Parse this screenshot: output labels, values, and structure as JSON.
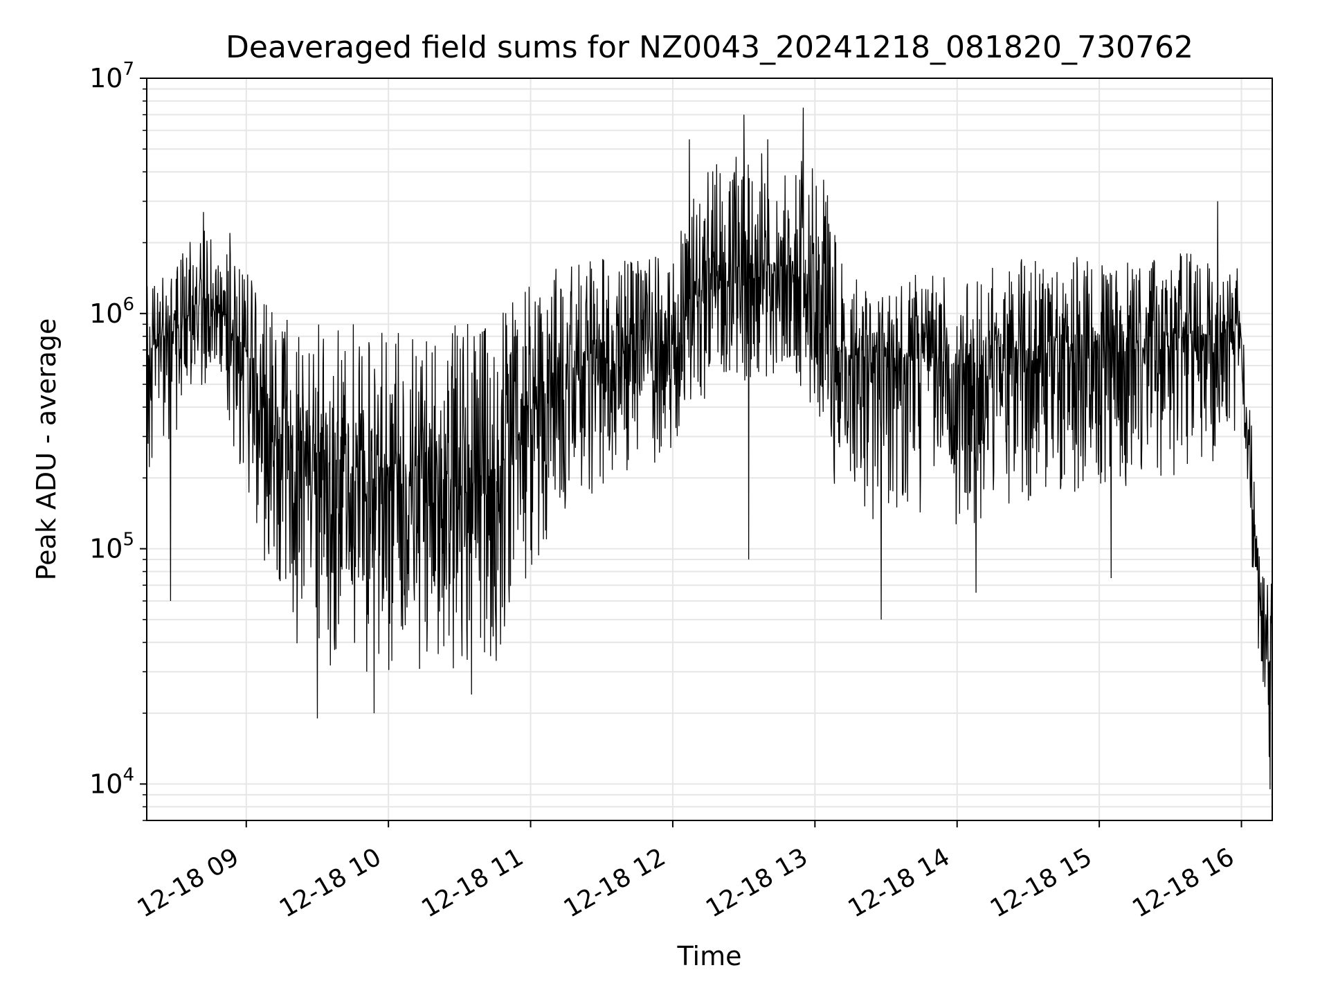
{
  "chart_data": {
    "type": "line",
    "title": "Deaveraged field sums for NZ0043_20241218_081820_730762",
    "xlabel": "Time",
    "ylabel": "Peak ADU - average",
    "yscale": "log",
    "ylim": [
      7000,
      10000000
    ],
    "xlim": [
      "2024-12-18 08:18",
      "2024-12-18 16:13"
    ],
    "x_ticks": [
      "12-18 09",
      "12-18 10",
      "12-18 11",
      "12-18 12",
      "12-18 13",
      "12-18 14",
      "12-18 15",
      "12-18 16"
    ],
    "x_tick_times": [
      "2024-12-18 09:00",
      "2024-12-18 10:00",
      "2024-12-18 11:00",
      "2024-12-18 12:00",
      "2024-12-18 13:00",
      "2024-12-18 14:00",
      "2024-12-18 15:00",
      "2024-12-18 16:00"
    ],
    "y_ticks": [
      {
        "base": "10",
        "exp": "4",
        "value": 10000
      },
      {
        "base": "10",
        "exp": "5",
        "value": 100000
      },
      {
        "base": "10",
        "exp": "6",
        "value": 1000000
      },
      {
        "base": "10",
        "exp": "7",
        "value": 10000000
      }
    ],
    "grid": true,
    "line_color": "#000000",
    "grid_color": "#e6e6e6",
    "series": [
      {
        "x": [
          "2024-12-18 08:18",
          "2024-12-18 08:30",
          "2024-12-18 08:40",
          "2024-12-18 08:50",
          "2024-12-18 09:00",
          "2024-12-18 09:10",
          "2024-12-18 09:20",
          "2024-12-18 09:30",
          "2024-12-18 09:45",
          "2024-12-18 10:00",
          "2024-12-18 10:15",
          "2024-12-18 10:30",
          "2024-12-18 10:45",
          "2024-12-18 11:00",
          "2024-12-18 11:15",
          "2024-12-18 11:30",
          "2024-12-18 11:45",
          "2024-12-18 12:00",
          "2024-12-18 12:10",
          "2024-12-18 12:20",
          "2024-12-18 12:30",
          "2024-12-18 12:40",
          "2024-12-18 12:50",
          "2024-12-18 13:00",
          "2024-12-18 13:10",
          "2024-12-18 13:20",
          "2024-12-18 13:30",
          "2024-12-18 13:45",
          "2024-12-18 14:00",
          "2024-12-18 14:15",
          "2024-12-18 14:30",
          "2024-12-18 14:45",
          "2024-12-18 15:00",
          "2024-12-18 15:15",
          "2024-12-18 15:30",
          "2024-12-18 15:45",
          "2024-12-18 16:00",
          "2024-12-18 16:04",
          "2024-12-18 16:07",
          "2024-12-18 16:10",
          "2024-12-18 16:13"
        ],
        "median": [
          650000,
          850000,
          1100000,
          1000000,
          700000,
          400000,
          300000,
          250000,
          230000,
          230000,
          200000,
          180000,
          200000,
          400000,
          600000,
          650000,
          700000,
          750000,
          1200000,
          1300000,
          1300000,
          1500000,
          1400000,
          1300000,
          700000,
          600000,
          650000,
          650000,
          600000,
          650000,
          700000,
          750000,
          750000,
          750000,
          800000,
          800000,
          850000,
          200000,
          60000,
          40000,
          30000
        ],
        "low": [
          200000,
          300000,
          500000,
          450000,
          150000,
          70000,
          40000,
          30000,
          30000,
          30000,
          30000,
          28000,
          30000,
          80000,
          150000,
          180000,
          200000,
          250000,
          400000,
          500000,
          450000,
          500000,
          450000,
          400000,
          150000,
          120000,
          140000,
          140000,
          120000,
          130000,
          150000,
          170000,
          170000,
          180000,
          200000,
          220000,
          300000,
          90000,
          25000,
          15000,
          10000
        ],
        "high": [
          1300000,
          1800000,
          2400000,
          2000000,
          1600000,
          1100000,
          1000000,
          1000000,
          1000000,
          1000000,
          900000,
          900000,
          1000000,
          1400000,
          1700000,
          1800000,
          1800000,
          2000000,
          4000000,
          4500000,
          5500000,
          5000000,
          4000000,
          5500000,
          2000000,
          1400000,
          1500000,
          1500000,
          1500000,
          1600000,
          1800000,
          1800000,
          1700000,
          1700000,
          1800000,
          1800000,
          1600000,
          400000,
          100000,
          80000,
          70000
        ],
        "peaks": [
          {
            "x": "2024-12-18 08:42",
            "y": 2700000
          },
          {
            "x": "2024-12-18 08:53",
            "y": 2200000
          },
          {
            "x": "2024-12-18 08:28",
            "y": 60000
          },
          {
            "x": "2024-12-18 09:30",
            "y": 19000
          },
          {
            "x": "2024-12-18 09:54",
            "y": 20000
          },
          {
            "x": "2024-12-18 10:35",
            "y": 24000
          },
          {
            "x": "2024-12-18 12:07",
            "y": 5500000
          },
          {
            "x": "2024-12-18 12:30",
            "y": 7000000
          },
          {
            "x": "2024-12-18 12:40",
            "y": 5500000
          },
          {
            "x": "2024-12-18 12:55",
            "y": 7500000
          },
          {
            "x": "2024-12-18 12:32",
            "y": 90000
          },
          {
            "x": "2024-12-18 13:28",
            "y": 50000
          },
          {
            "x": "2024-12-18 14:08",
            "y": 65000
          },
          {
            "x": "2024-12-18 15:05",
            "y": 75000
          },
          {
            "x": "2024-12-18 15:50",
            "y": 3000000
          },
          {
            "x": "2024-12-18 16:12",
            "y": 9500
          }
        ]
      }
    ]
  }
}
